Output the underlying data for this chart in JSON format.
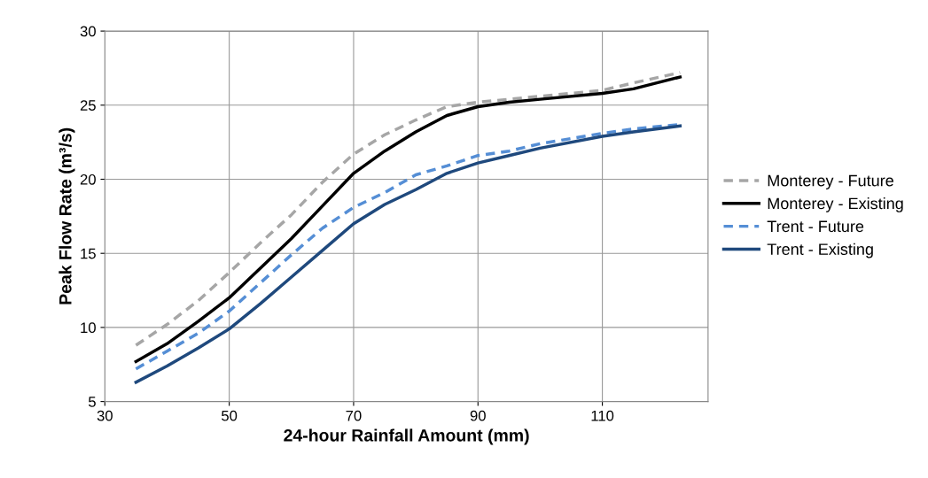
{
  "chart_data": {
    "type": "line",
    "xlabel": "24-hour Rainfall Amount (mm)",
    "ylabel": "Peak Flow Rate (m³/s)",
    "x": [
      35,
      40,
      45,
      50,
      55,
      60,
      65,
      70,
      75,
      80,
      85,
      90,
      95,
      100,
      110,
      115,
      122.5
    ],
    "xlim": [
      30,
      127
    ],
    "xticks": [
      30,
      50,
      70,
      90,
      110
    ],
    "ylim": [
      5,
      30
    ],
    "yticks": [
      5,
      10,
      15,
      20,
      25,
      30
    ],
    "grid": true,
    "legend": "right",
    "marker": "none",
    "series": [
      {
        "name": "Monterey - Future",
        "color": "#a6a6a6",
        "line_style": "dashed",
        "values": [
          8.8,
          10.2,
          11.8,
          13.7,
          15.7,
          17.6,
          19.8,
          21.7,
          23.0,
          24.0,
          24.9,
          25.2,
          25.4,
          25.6,
          26.0,
          26.5,
          27.2
        ]
      },
      {
        "name": "Monterey - Existing",
        "color": "#000000",
        "line_style": "solid",
        "values": [
          7.7,
          8.9,
          10.4,
          12.0,
          14.0,
          16.0,
          18.2,
          20.4,
          21.9,
          23.2,
          24.3,
          24.9,
          25.2,
          25.4,
          25.8,
          26.1,
          26.9
        ]
      },
      {
        "name": "Trent - Future",
        "color": "#558ed5",
        "line_style": "dashed",
        "values": [
          7.2,
          8.4,
          9.6,
          11.1,
          13.0,
          14.9,
          16.7,
          18.1,
          19.1,
          20.3,
          20.9,
          21.6,
          21.9,
          22.4,
          23.1,
          23.4,
          23.7
        ]
      },
      {
        "name": "Trent - Existing",
        "color": "#1f497d",
        "line_style": "solid",
        "values": [
          6.3,
          7.4,
          8.6,
          9.9,
          11.6,
          13.4,
          15.2,
          17.0,
          18.3,
          19.3,
          20.4,
          21.1,
          21.6,
          22.1,
          22.9,
          23.2,
          23.6
        ]
      }
    ]
  }
}
